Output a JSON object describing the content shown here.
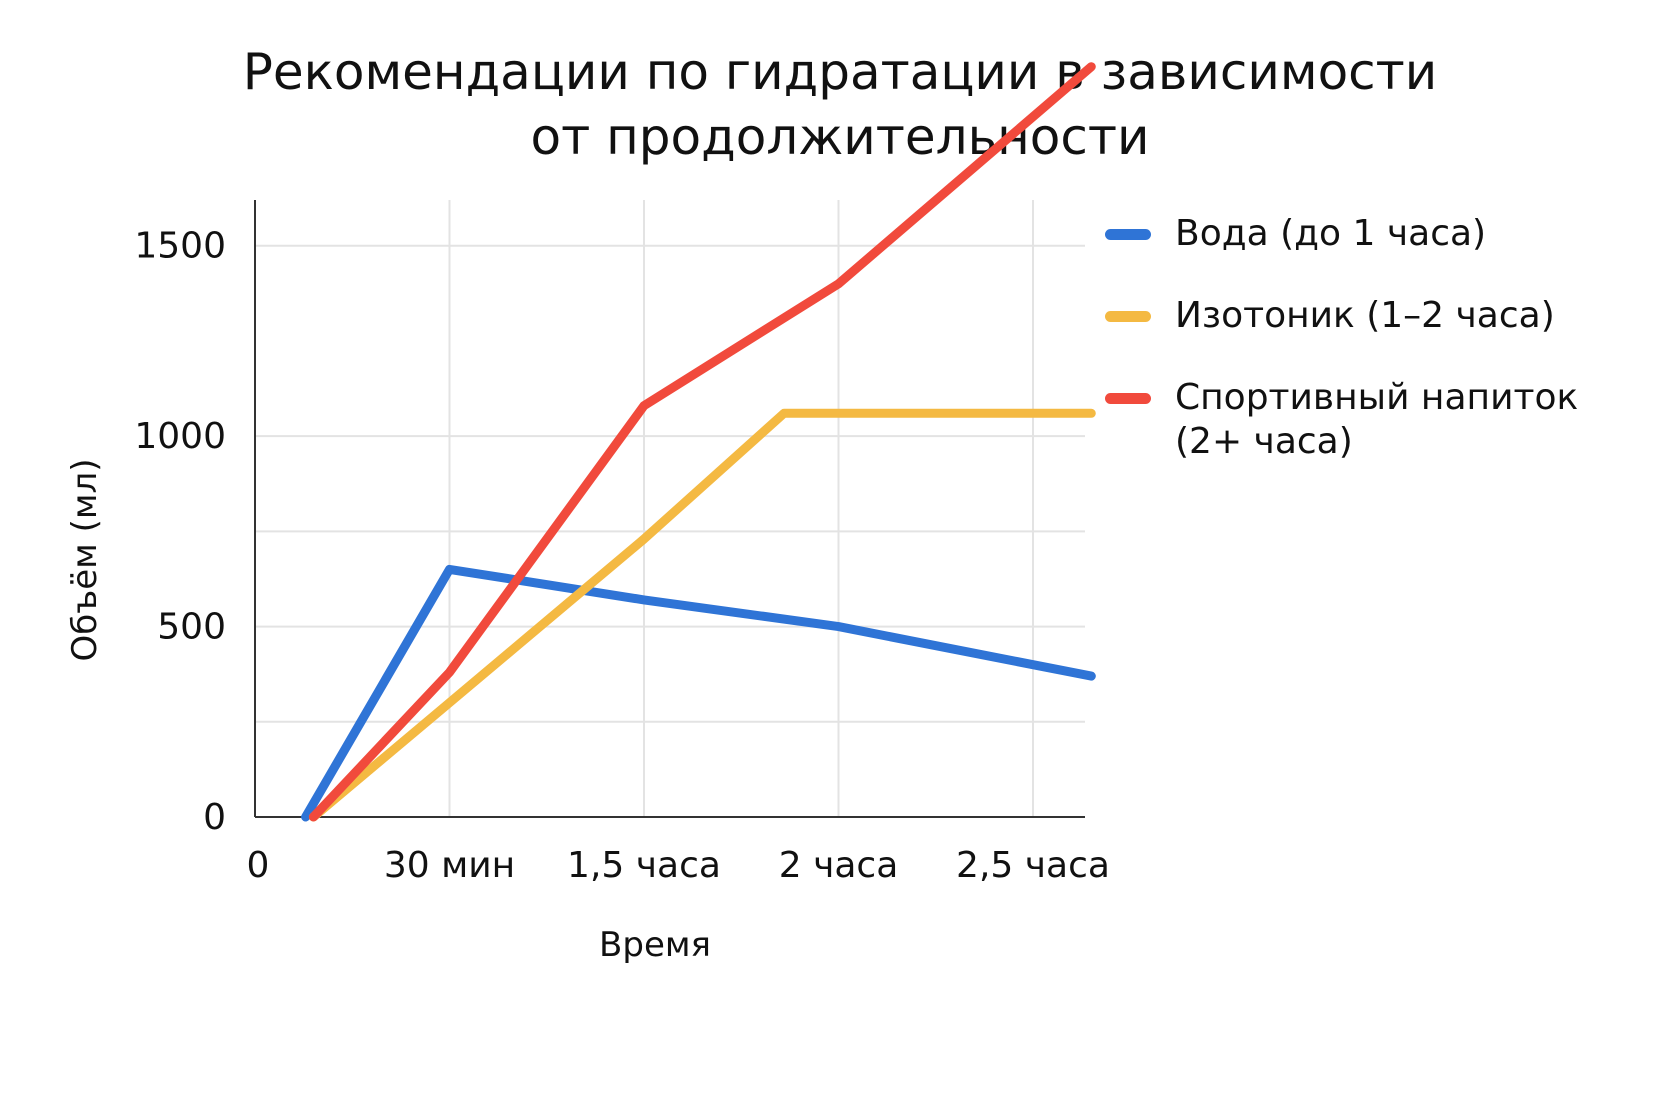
{
  "chart_data": {
    "type": "line",
    "title_lines": [
      "Рекомендации по гидратации в зависимости",
      "от продолжительности"
    ],
    "xlabel": "Время",
    "ylabel": "Объём (мл)",
    "x_ticks": [
      {
        "label": "0",
        "x": 0
      },
      {
        "label": "30 мин",
        "x": 0.5
      },
      {
        "label": "1,5 часа",
        "x": 1.0
      },
      {
        "label": "2 часа",
        "x": 1.5
      },
      {
        "label": "2,5 часа",
        "x": 2.0
      }
    ],
    "y_ticks": [
      {
        "label": "0",
        "y": 0
      },
      {
        "label": "500",
        "y": 500
      },
      {
        "label": "1000",
        "y": 1000
      },
      {
        "label": "1500",
        "y": 1500
      }
    ],
    "y_gridlines": [
      0,
      250,
      500,
      750,
      1000,
      1500
    ],
    "xlim": [
      0,
      2.15
    ],
    "ylim": [
      0,
      1620
    ],
    "grid": true,
    "legend_position": "right",
    "series": [
      {
        "name": "Вода (до 1 часа)",
        "color": "#2f74d6",
        "points": [
          [
            0.13,
            0
          ],
          [
            0.5,
            650
          ],
          [
            1.0,
            570
          ],
          [
            1.5,
            500
          ],
          [
            2.15,
            370
          ]
        ]
      },
      {
        "name": "Изотоник (1–2 часа)",
        "color": "#f4b942",
        "points": [
          [
            0.15,
            0
          ],
          [
            0.5,
            300
          ],
          [
            1.0,
            730
          ],
          [
            1.36,
            1060
          ],
          [
            2.15,
            1060
          ]
        ]
      },
      {
        "name": "Спортивный напиток (2+ часа)",
        "color": "#f14a3c",
        "points": [
          [
            0.15,
            0
          ],
          [
            0.5,
            380
          ],
          [
            1.0,
            1080
          ],
          [
            1.5,
            1400
          ],
          [
            2.15,
            1970
          ]
        ]
      }
    ]
  }
}
